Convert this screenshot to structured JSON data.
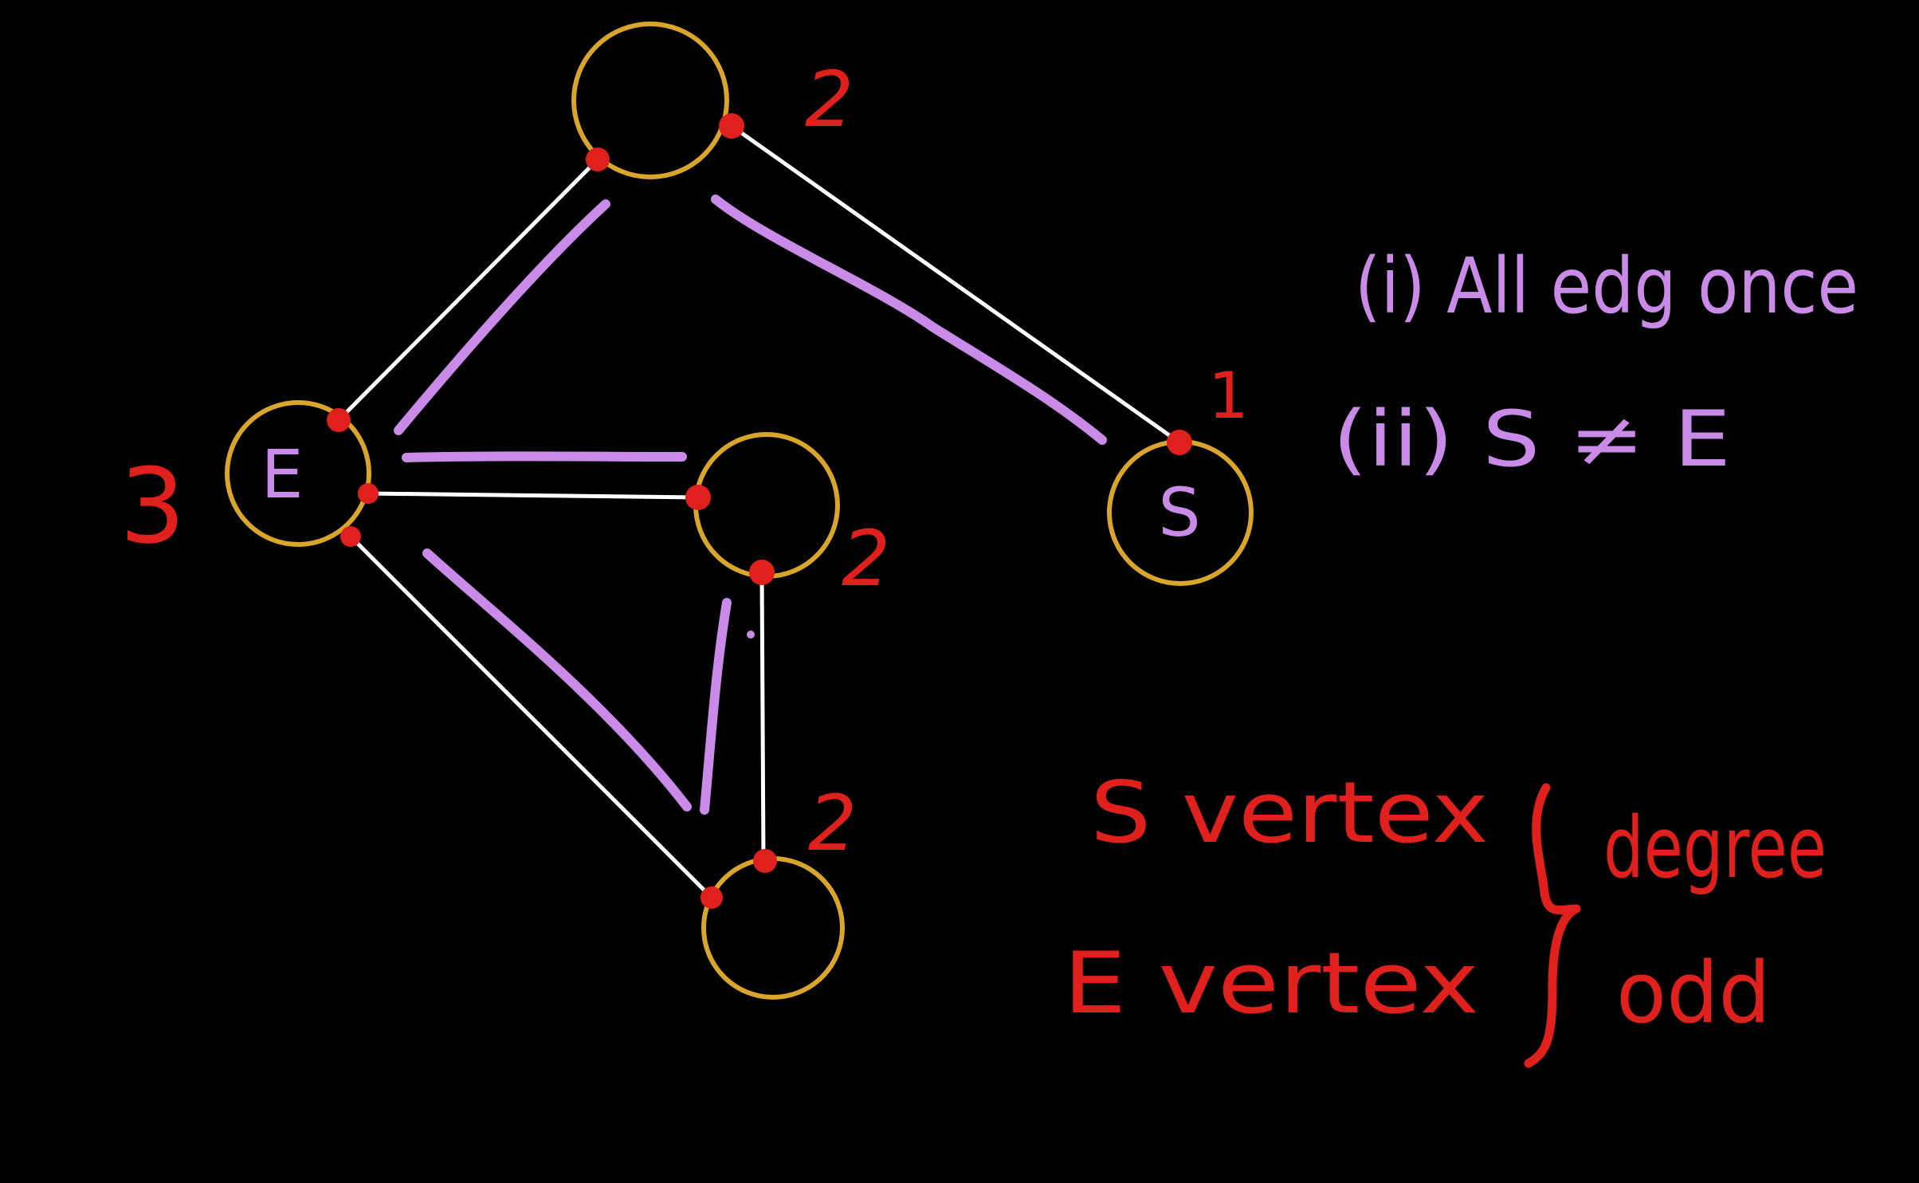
{
  "colors": {
    "background": "#000000",
    "vertex_ring": "#d9a52a",
    "edge": "#ffffff",
    "trace": "#c98ae8",
    "endpoint": "#e0201c",
    "annotation_red": "#e0201c",
    "annotation_purple": "#c98ae8"
  },
  "graph": {
    "vertices": [
      {
        "id": "top",
        "label": "",
        "degree": "2"
      },
      {
        "id": "E",
        "label": "E",
        "degree": "3"
      },
      {
        "id": "S",
        "label": "S",
        "degree": "1"
      },
      {
        "id": "middle",
        "label": "",
        "degree": "2"
      },
      {
        "id": "bottom",
        "label": "",
        "degree": "2"
      }
    ],
    "edges": [
      {
        "from": "top",
        "to": "E"
      },
      {
        "from": "top",
        "to": "S"
      },
      {
        "from": "E",
        "to": "middle"
      },
      {
        "from": "E",
        "to": "bottom"
      },
      {
        "from": "middle",
        "to": "bottom"
      }
    ]
  },
  "conditions": {
    "line1": "(i) All edg once",
    "line2": "(ii) S ≠ E"
  },
  "note": {
    "s_vertex": "S vertex",
    "e_vertex": "E vertex",
    "degree": "degree",
    "odd": "odd"
  }
}
